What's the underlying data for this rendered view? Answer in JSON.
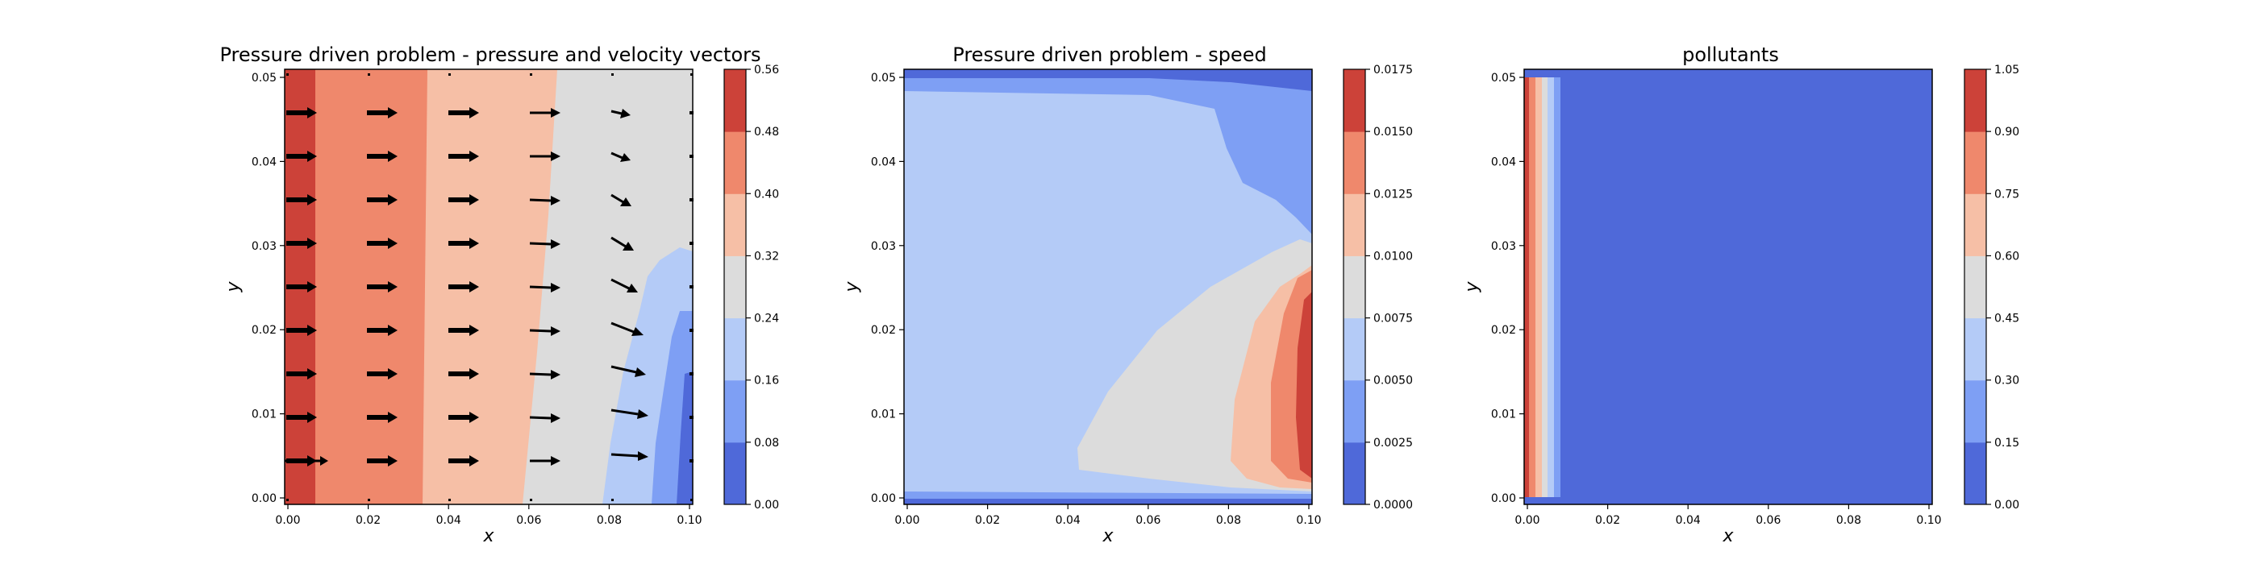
{
  "figure": {
    "background": "#ffffff"
  },
  "colors": {
    "c1": "#4f69d9",
    "c2": "#7e9ff4",
    "c3": "#b4cbf7",
    "c4": "#dcdcdc",
    "c5": "#f6bfa6",
    "c6": "#ef886c",
    "c7": "#cc4239"
  },
  "chart_data": [
    {
      "type": "contour",
      "title": "Pressure driven problem - pressure and velocity vectors",
      "xlabel": "x",
      "ylabel": "y",
      "xlim": [
        0.0,
        0.1
      ],
      "ylim": [
        0.0,
        0.05
      ],
      "xticks": [
        "0.00",
        "0.02",
        "0.04",
        "0.06",
        "0.08",
        "0.10"
      ],
      "yticks": [
        "0.00",
        "0.01",
        "0.02",
        "0.03",
        "0.04",
        "0.05"
      ],
      "colorbar": {
        "levels": [
          "0.00",
          "0.08",
          "0.16",
          "0.24",
          "0.32",
          "0.40",
          "0.48",
          "0.56"
        ]
      },
      "contour_boundaries": [
        {
          "between": "0.48-0.56",
          "points": [
            [
              0.0073,
              0.05
            ],
            [
              0.0073,
              0.0
            ]
          ]
        },
        {
          "between": "0.40-0.48",
          "points": [
            [
              0.0345,
              0.05
            ],
            [
              0.0335,
              0.0
            ]
          ]
        },
        {
          "between": "0.32-0.40",
          "points": [
            [
              0.066,
              0.05
            ],
            [
              0.064,
              0.03
            ],
            [
              0.061,
              0.015
            ],
            [
              0.0585,
              0.0
            ]
          ]
        },
        {
          "between": "0.24-0.32",
          "points": [
            [
              0.1,
              0.029
            ],
            [
              0.097,
              0.0295
            ],
            [
              0.092,
              0.028
            ],
            [
              0.089,
              0.026
            ],
            [
              0.087,
              0.022
            ],
            [
              0.083,
              0.015
            ],
            [
              0.08,
              0.007
            ],
            [
              0.078,
              0.0
            ]
          ]
        },
        {
          "between": "0.16-0.24",
          "points": [
            [
              0.1,
              0.022
            ],
            [
              0.097,
              0.022
            ],
            [
              0.094,
              0.0195
            ],
            [
              0.092,
              0.013
            ],
            [
              0.09,
              0.0
            ]
          ]
        },
        {
          "between": "0.08-0.16",
          "points": [
            [
              0.1,
              0.015
            ],
            [
              0.098,
              0.0145
            ],
            [
              0.097,
              0.008
            ],
            [
              0.096,
              0.0
            ]
          ]
        }
      ],
      "quiver": {
        "x": [
          0.0036,
          0.0236,
          0.0436,
          0.0636,
          0.0836,
          0.1
        ],
        "y": [
          0.005,
          0.01,
          0.015,
          0.02,
          0.025,
          0.03,
          0.035,
          0.04,
          0.045
        ],
        "u_by_column": [
          [
            1.0,
            1.0,
            1.0,
            1.0,
            1.0,
            1.0,
            1.0,
            1.0,
            1.0
          ],
          [
            1.0,
            1.0,
            1.0,
            1.0,
            1.0,
            1.0,
            1.0,
            1.0,
            1.0
          ],
          [
            1.0,
            1.0,
            1.0,
            1.0,
            1.0,
            1.0,
            1.0,
            1.0,
            1.0
          ],
          [
            1.0,
            1.0,
            1.0,
            1.0,
            1.0,
            1.0,
            1.0,
            1.0,
            1.0
          ],
          [
            1.3,
            1.35,
            1.3,
            1.15,
            0.95,
            0.8,
            0.7,
            0.65,
            0.6
          ],
          [
            0.05,
            0.05,
            0.05,
            0.05,
            0.05,
            0.05,
            0.05,
            0.05,
            0.05
          ]
        ],
        "v_by_column": [
          [
            0,
            0,
            0,
            0,
            0,
            0,
            0,
            0,
            0
          ],
          [
            0,
            0,
            0,
            0,
            0,
            0,
            0,
            0,
            0
          ],
          [
            0,
            0,
            0,
            0,
            0,
            0,
            0,
            0,
            0
          ],
          [
            0,
            -0.03,
            -0.03,
            -0.03,
            -0.03,
            -0.03,
            -0.03,
            -0.02,
            0
          ],
          [
            -0.05,
            -0.13,
            -0.17,
            -0.25,
            -0.3,
            -0.35,
            -0.3,
            -0.22,
            -0.1
          ],
          [
            0,
            0,
            0,
            0,
            0,
            0,
            0,
            0,
            0
          ]
        ],
        "colors_note": "black arrows"
      }
    },
    {
      "type": "contour",
      "title": "Pressure driven problem - speed",
      "xlabel": "x",
      "ylabel": "y",
      "xlim": [
        0.0,
        0.1
      ],
      "ylim": [
        0.0,
        0.05
      ],
      "xticks": [
        "0.00",
        "0.02",
        "0.04",
        "0.06",
        "0.08",
        "0.10"
      ],
      "yticks": [
        "0.00",
        "0.01",
        "0.02",
        "0.03",
        "0.04",
        "0.05"
      ],
      "colorbar": {
        "levels": [
          "0.0000",
          "0.0025",
          "0.0050",
          "0.0075",
          "0.0100",
          "0.0125",
          "0.0150",
          "0.0175"
        ]
      },
      "contour_boundaries": [
        {
          "between": "0.0025-0.0050 top",
          "points": [
            [
              0.0,
              0.049
            ],
            [
              0.06,
              0.049
            ],
            [
              0.08,
              0.0485
            ],
            [
              0.1,
              0.047
            ]
          ]
        },
        {
          "between": "0.0050-0.0075 top",
          "points": [
            [
              0.0,
              0.0475
            ],
            [
              0.06,
              0.047
            ],
            [
              0.076,
              0.0455
            ],
            [
              0.079,
              0.041
            ],
            [
              0.083,
              0.037
            ],
            [
              0.091,
              0.035
            ],
            [
              0.096,
              0.033
            ],
            [
              0.1,
              0.031
            ]
          ]
        },
        {
          "between": "0.0025-0.0050 bottom",
          "points": [
            [
              0.0,
              0.0006
            ],
            [
              0.1,
              0.0006
            ]
          ]
        },
        {
          "between": "0.0050-0.0075 bottom",
          "points": [
            [
              0.0,
              0.0015
            ],
            [
              0.05,
              0.0015
            ],
            [
              0.1,
              0.0012
            ]
          ]
        },
        {
          "between": "0.0075-0.0100",
          "points": [
            [
              0.1,
              0.03
            ],
            [
              0.097,
              0.0305
            ],
            [
              0.09,
              0.029
            ],
            [
              0.075,
              0.025
            ],
            [
              0.062,
              0.02
            ],
            [
              0.05,
              0.013
            ],
            [
              0.0425,
              0.0065
            ],
            [
              0.045,
              0.004
            ],
            [
              0.06,
              0.003
            ],
            [
              0.08,
              0.002
            ],
            [
              0.1,
              0.0015
            ]
          ]
        },
        {
          "between": "0.0100-0.0125",
          "points": [
            [
              0.1,
              0.0275
            ],
            [
              0.097,
              0.0265
            ],
            [
              0.092,
              0.025
            ],
            [
              0.086,
              0.021
            ],
            [
              0.081,
              0.012
            ],
            [
              0.08,
              0.005
            ],
            [
              0.084,
              0.003
            ],
            [
              0.092,
              0.002
            ],
            [
              0.1,
              0.0018
            ]
          ]
        },
        {
          "between": "0.0125-0.0150",
          "points": [
            [
              0.1,
              0.027
            ],
            [
              0.0965,
              0.026
            ],
            [
              0.093,
              0.022
            ],
            [
              0.09,
              0.014
            ],
            [
              0.09,
              0.005
            ],
            [
              0.094,
              0.003
            ],
            [
              0.1,
              0.0025
            ]
          ]
        },
        {
          "between": "0.0150-0.0175",
          "points": [
            [
              0.1,
              0.0245
            ],
            [
              0.098,
              0.0235
            ],
            [
              0.0965,
              0.018
            ],
            [
              0.096,
              0.01
            ],
            [
              0.097,
              0.004
            ],
            [
              0.1,
              0.003
            ]
          ]
        }
      ]
    },
    {
      "type": "contour",
      "title": "pollutants",
      "xlabel": "x",
      "ylabel": "y",
      "xlim": [
        0.0,
        0.1
      ],
      "ylim": [
        0.0,
        0.05
      ],
      "xticks": [
        "0.00",
        "0.02",
        "0.04",
        "0.06",
        "0.08",
        "0.10"
      ],
      "yticks": [
        "0.00",
        "0.01",
        "0.02",
        "0.03",
        "0.04",
        "0.05"
      ],
      "colorbar": {
        "levels": [
          "0.00",
          "0.15",
          "0.30",
          "0.45",
          "0.60",
          "0.75",
          "0.90",
          "1.05"
        ]
      },
      "contour_boundaries": [
        {
          "between": "0.90-1.05",
          "points": [
            [
              0.0012,
              0.05
            ],
            [
              0.0012,
              0.0
            ]
          ]
        },
        {
          "between": "0.75-0.90",
          "points": [
            [
              0.0028,
              0.05
            ],
            [
              0.0028,
              0.0
            ]
          ]
        },
        {
          "between": "0.60-0.75",
          "points": [
            [
              0.0043,
              0.05
            ],
            [
              0.0043,
              0.0
            ]
          ]
        },
        {
          "between": "0.45-0.60",
          "points": [
            [
              0.0058,
              0.05
            ],
            [
              0.0058,
              0.0
            ]
          ]
        },
        {
          "between": "0.30-0.45",
          "points": [
            [
              0.0072,
              0.05
            ],
            [
              0.0074,
              0.0
            ]
          ]
        },
        {
          "between": "0.15-0.30",
          "points": [
            [
              0.0085,
              0.05
            ],
            [
              0.0088,
              0.0
            ]
          ]
        }
      ]
    }
  ]
}
